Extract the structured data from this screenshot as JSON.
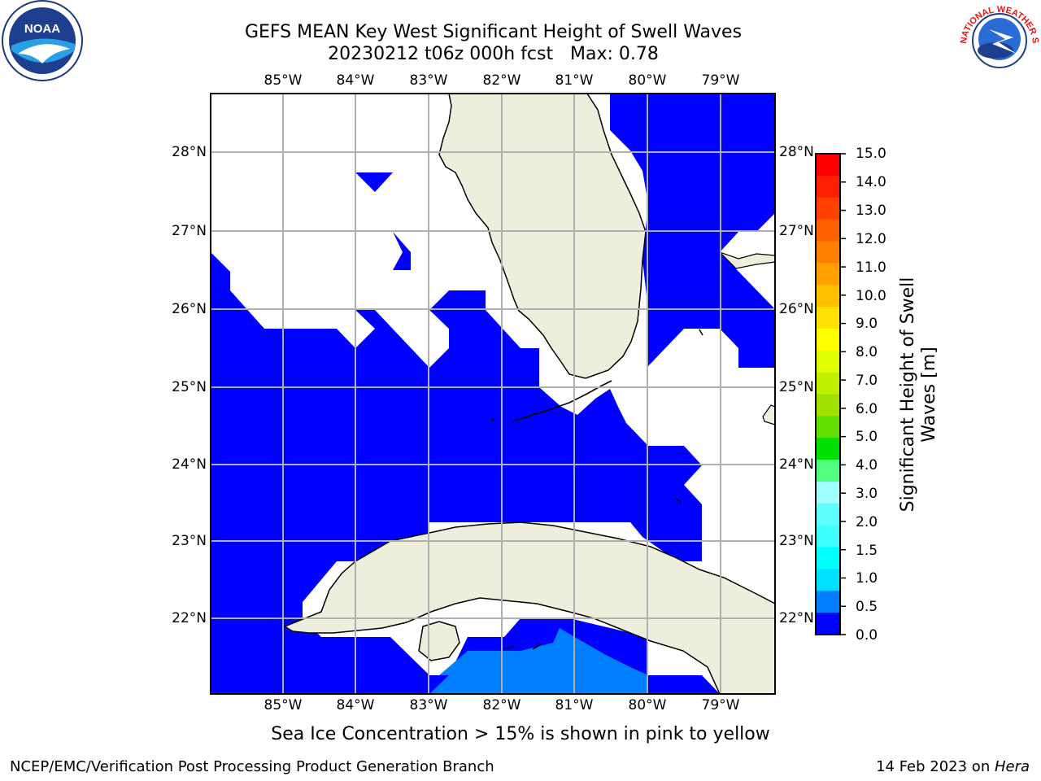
{
  "title": {
    "line1": "GEFS MEAN Key West Significant Height of Swell Waves",
    "line2": "20230212 t06z 000h fcst   Max: 0.78"
  },
  "logos": {
    "left": "NOAA",
    "left_ring_text": "NATIONAL OCEANIC AND ATMOSPHERIC ADMINISTRATION · U.S. DEPARTMENT OF COMMERCE",
    "right_ring_text": "NATIONAL WEATHER SERVICE"
  },
  "map": {
    "lon_labels": [
      "85°W",
      "84°W",
      "83°W",
      "82°W",
      "81°W",
      "80°W",
      "79°W"
    ],
    "lat_labels": [
      "28°N",
      "27°N",
      "26°N",
      "25°N",
      "24°N",
      "23°N",
      "22°N"
    ],
    "extent": {
      "lon_min": -86.0,
      "lon_max": -78.25,
      "lat_min": 21.0,
      "lat_max": 28.75
    },
    "land_color": "#eeeedd",
    "grid_color": "#b0b0b0"
  },
  "colorbar": {
    "label": "Significant Height of Swell\nWaves [m]",
    "label_line1": "Significant Height of Swell",
    "label_line2": "Waves [m]",
    "ticks": [
      "15.0",
      "14.0",
      "13.0",
      "12.0",
      "11.0",
      "10.0",
      "9.0",
      "8.0",
      "7.0",
      "6.0",
      "5.0",
      "4.0",
      "3.0",
      "2.0",
      "1.5",
      "1.0",
      "0.5",
      "0.0"
    ],
    "colors": [
      "#0000ff",
      "#0080ff",
      "#00e0ff",
      "#00ffff",
      "#40ffff",
      "#80ffff",
      "#a0ffff",
      "#60ff80",
      "#00e000",
      "#00cc00",
      "#40dd00",
      "#a0e000",
      "#d0f000",
      "#ffff00",
      "#ffe000",
      "#ffc000",
      "#ffa000",
      "#ff8000",
      "#ff6000",
      "#ff4000",
      "#ff2000",
      "#ff0000"
    ],
    "display_colors": [
      "#ff0000",
      "#ff2000",
      "#ff4000",
      "#ff6000",
      "#ff8000",
      "#ffa000",
      "#ffc000",
      "#ffe000",
      "#ffff00",
      "#e0ff00",
      "#c0f000",
      "#a0e000",
      "#60e000",
      "#00e000",
      "#50ff80",
      "#a0ffff",
      "#60ffff",
      "#40ffff",
      "#00ffff",
      "#00e0ff",
      "#0080ff",
      "#0000ff"
    ]
  },
  "ice_note": "Sea Ice Concentration > 15% is shown in pink to yellow",
  "footer": {
    "left": "NCEP/EMC/Verification Post Processing Product Generation Branch",
    "right_date": "14 Feb 2023 on ",
    "right_host": "Hera"
  }
}
